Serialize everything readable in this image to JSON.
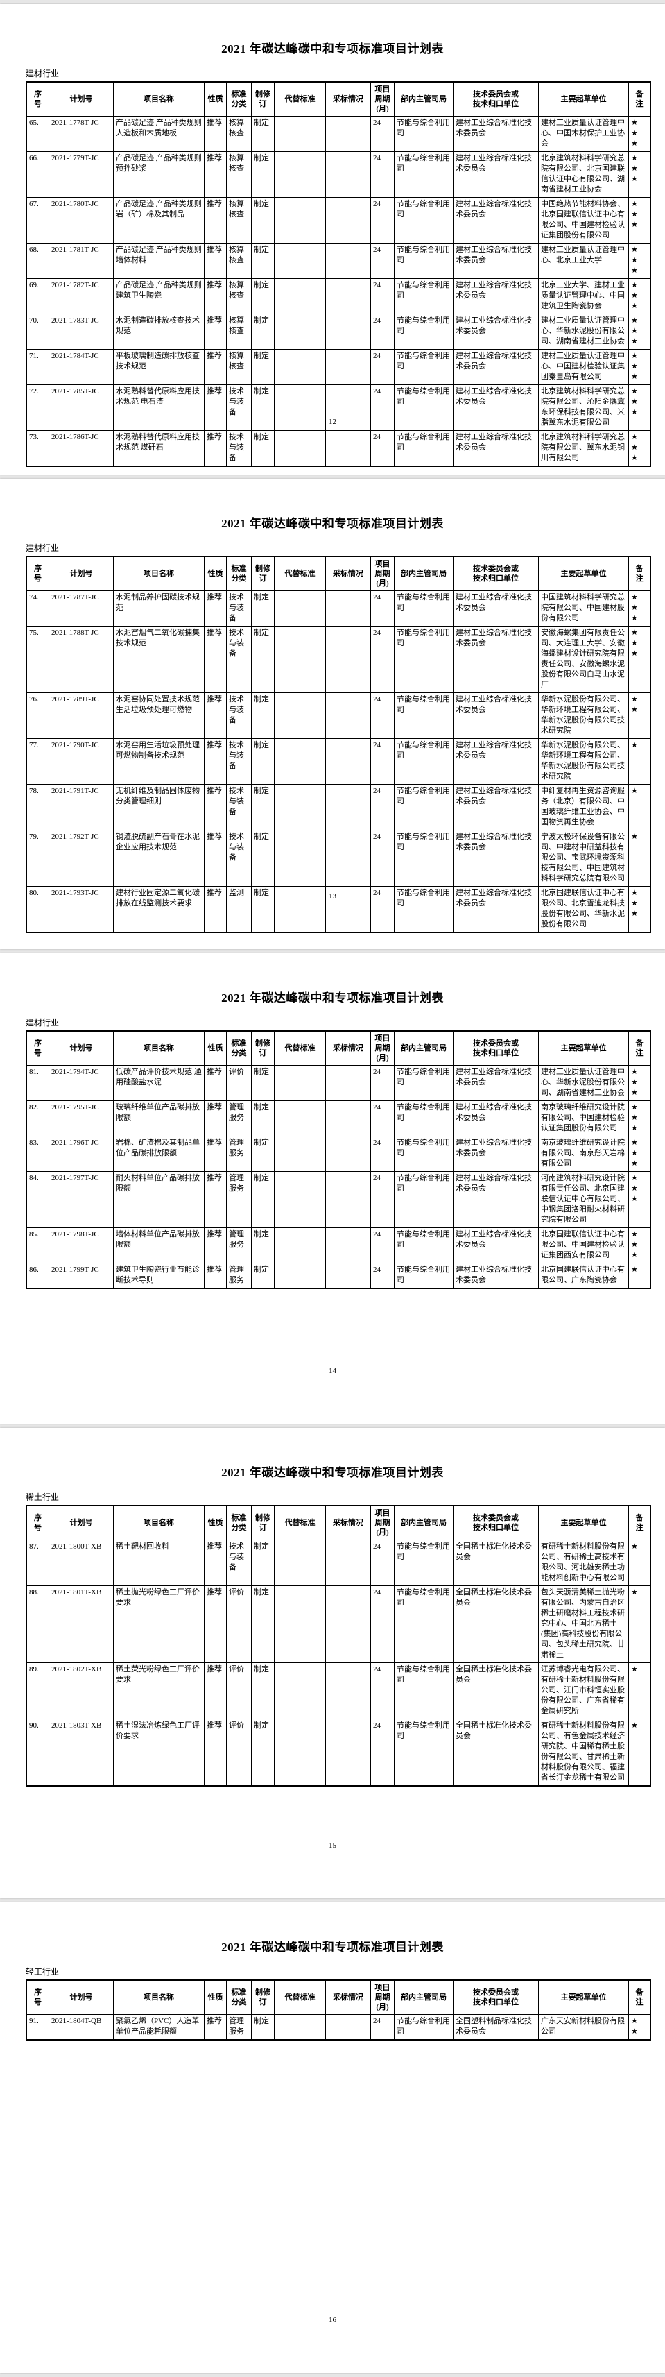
{
  "doc": {
    "title": "2021 年碳达峰碳中和专项标准项目计划表"
  },
  "table": {
    "columns": [
      "序\n号",
      "计划号",
      "项目名称",
      "性质",
      "标准\n分类",
      "制修\n订",
      "代替标准",
      "采标情况",
      "项目\n周期\n(月)",
      "部内主管司局",
      "技术委员会或\n技术归口单位",
      "主要起草单位",
      "备\n注"
    ],
    "column_keys": [
      "index",
      "plan-no",
      "project-name",
      "nature",
      "std-class",
      "make-revise",
      "replaced-std",
      "adoption",
      "cycle-months",
      "dept",
      "committee",
      "drafting-unit",
      "remark"
    ]
  },
  "pages": [
    {
      "section": "建材行业",
      "page_number": "12",
      "rows": [
        [
          "65.",
          "2021-1778T-JC",
          "产品碳足迹 产品种类规则 人造板和木质地板",
          "推荐",
          "核算核查",
          "制定",
          "",
          "",
          "24",
          "节能与综合利用司",
          "建材工业综合标准化技术委员会",
          "建材工业质量认证管理中心、中国木材保护工业协会",
          "★\n★\n★"
        ],
        [
          "66.",
          "2021-1779T-JC",
          "产品碳足迹 产品种类规则 预拌砂浆",
          "推荐",
          "核算核查",
          "制定",
          "",
          "",
          "24",
          "节能与综合利用司",
          "建材工业综合标准化技术委员会",
          "北京建筑材料科学研究总院有限公司、北京国建联信认证中心有限公司、湖南省建材工业协会",
          "★\n★\n★"
        ],
        [
          "67.",
          "2021-1780T-JC",
          "产品碳足迹 产品种类规则 岩（矿）棉及其制品",
          "推荐",
          "核算核查",
          "制定",
          "",
          "",
          "24",
          "节能与综合利用司",
          "建材工业综合标准化技术委员会",
          "中国绝热节能材料协会、北京国建联信认证中心有限公司、中国建材检验认证集团股份有限公司",
          "★\n★\n★"
        ],
        [
          "68.",
          "2021-1781T-JC",
          "产品碳足迹 产品种类规则 墙体材料",
          "推荐",
          "核算核查",
          "制定",
          "",
          "",
          "24",
          "节能与综合利用司",
          "建材工业综合标准化技术委员会",
          "建材工业质量认证管理中心、北京工业大学",
          "★\n★\n★"
        ],
        [
          "69.",
          "2021-1782T-JC",
          "产品碳足迹 产品种类规则 建筑卫生陶瓷",
          "推荐",
          "核算核查",
          "制定",
          "",
          "",
          "24",
          "节能与综合利用司",
          "建材工业综合标准化技术委员会",
          "北京工业大学、建材工业质量认证管理中心、中国建筑卫生陶瓷协会",
          "★\n★\n★"
        ],
        [
          "70.",
          "2021-1783T-JC",
          "水泥制造碳排放核查技术规范",
          "推荐",
          "核算核查",
          "制定",
          "",
          "",
          "24",
          "节能与综合利用司",
          "建材工业综合标准化技术委员会",
          "建材工业质量认证管理中心、华新水泥股份有限公司、湖南省建材工业协会",
          "★\n★\n★"
        ],
        [
          "71.",
          "2021-1784T-JC",
          "平板玻璃制造碳排放核查技术规范",
          "推荐",
          "核算核查",
          "制定",
          "",
          "",
          "24",
          "节能与综合利用司",
          "建材工业综合标准化技术委员会",
          "建材工业质量认证管理中心、中国建材检验认证集团秦皇岛有限公司",
          "★\n★\n★"
        ],
        [
          "72.",
          "2021-1785T-JC",
          "水泥熟料替代原料应用技术规范 电石渣",
          "推荐",
          "技术与装备",
          "制定",
          "",
          "",
          "24",
          "节能与综合利用司",
          "建材工业综合标准化技术委员会",
          "北京建筑材料科学研究总院有限公司、沁阳金隅冀东环保科技有限公司、米脂冀东水泥有限公司",
          "★\n★\n★"
        ],
        [
          "73.",
          "2021-1786T-JC",
          "水泥熟料替代原料应用技术规范 煤矸石",
          "推荐",
          "技术与装备",
          "制定",
          "",
          "",
          "24",
          "节能与综合利用司",
          "建材工业综合标准化技术委员会",
          "北京建筑材料科学研究总院有限公司、冀东水泥铜川有限公司",
          "★\n★\n★"
        ]
      ]
    },
    {
      "section": "建材行业",
      "page_number": "13",
      "rows": [
        [
          "74.",
          "2021-1787T-JC",
          "水泥制品养护固碳技术规范",
          "推荐",
          "技术与装备",
          "制定",
          "",
          "",
          "24",
          "节能与综合利用司",
          "建材工业综合标准化技术委员会",
          "中国建筑材料科学研究总院有限公司、中国建材股份有限公司",
          "★\n★\n★"
        ],
        [
          "75.",
          "2021-1788T-JC",
          "水泥窑烟气二氧化碳捕集技术规范",
          "推荐",
          "技术与装备",
          "制定",
          "",
          "",
          "24",
          "节能与综合利用司",
          "建材工业综合标准化技术委员会",
          "安徽海螺集团有限责任公司、大连理工大学、安徽海螺建材设计研究院有限责任公司、安徽海螺水泥股份有限公司白马山水泥厂",
          "★\n★\n★"
        ],
        [
          "76.",
          "2021-1789T-JC",
          "水泥窑协同处置技术规范 生活垃圾预处理可燃物",
          "推荐",
          "技术与装备",
          "制定",
          "",
          "",
          "24",
          "节能与综合利用司",
          "建材工业综合标准化技术委员会",
          "华新水泥股份有限公司、华新环境工程有限公司、华新水泥股份有限公司技术研究院",
          "★\n★"
        ],
        [
          "77.",
          "2021-1790T-JC",
          "水泥窑用生活垃圾预处理可燃物制备技术规范",
          "推荐",
          "技术与装备",
          "制定",
          "",
          "",
          "24",
          "节能与综合利用司",
          "建材工业综合标准化技术委员会",
          "华新水泥股份有限公司、华新环境工程有限公司、华新水泥股份有限公司技术研究院",
          "★"
        ],
        [
          "78.",
          "2021-1791T-JC",
          "无机纤维及制品固体废物分类管理细则",
          "推荐",
          "技术与装备",
          "制定",
          "",
          "",
          "24",
          "节能与综合利用司",
          "建材工业综合标准化技术委员会",
          "中纤复材再生资源咨询服务（北京）有限公司、中国玻璃纤维工业协会、中国物资再生协会",
          "★"
        ],
        [
          "79.",
          "2021-1792T-JC",
          "钢渣脱硫副产石膏在水泥企业应用技术规范",
          "推荐",
          "技术与装备",
          "制定",
          "",
          "",
          "24",
          "节能与综合利用司",
          "建材工业综合标准化技术委员会",
          "宁波太极环保设备有限公司、中建材中研益科技有限公司、宝武环境资源科技有限公司、中国建筑材料科学研究总院有限公司",
          "★"
        ],
        [
          "80.",
          "2021-1793T-JC",
          "建材行业固定源二氧化碳排放在线监测技术要求",
          "推荐",
          "监测",
          "制定",
          "",
          "",
          "24",
          "节能与综合利用司",
          "建材工业综合标准化技术委员会",
          "北京国建联信认证中心有限公司、北京雪迪龙科技股份有限公司、华新水泥股份有限公司",
          "★\n★\n★"
        ]
      ]
    },
    {
      "section": "建材行业",
      "page_number": "14",
      "rows": [
        [
          "81.",
          "2021-1794T-JC",
          "低碳产品评价技术规范 通用硅酸盐水泥",
          "推荐",
          "评价",
          "制定",
          "",
          "",
          "24",
          "节能与综合利用司",
          "建材工业综合标准化技术委员会",
          "建材工业质量认证管理中心、华新水泥股份有限公司、湖南省建材工业协会",
          "★\n★\n★"
        ],
        [
          "82.",
          "2021-1795T-JC",
          "玻璃纤维单位产品碳排放限额",
          "推荐",
          "管理服务",
          "制定",
          "",
          "",
          "24",
          "节能与综合利用司",
          "建材工业综合标准化技术委员会",
          "南京玻璃纤维研究设计院有限公司、中国建材检验认证集团股份有限公司",
          "★\n★\n★"
        ],
        [
          "83.",
          "2021-1796T-JC",
          "岩棉、矿渣棉及其制品单位产品碳排放限额",
          "推荐",
          "管理服务",
          "制定",
          "",
          "",
          "24",
          "节能与综合利用司",
          "建材工业综合标准化技术委员会",
          "南京玻璃纤维研究设计院有限公司、南京彤天岩棉有限公司",
          "★\n★\n★"
        ],
        [
          "84.",
          "2021-1797T-JC",
          "耐火材料单位产品碳排放限额",
          "推荐",
          "管理服务",
          "制定",
          "",
          "",
          "24",
          "节能与综合利用司",
          "建材工业综合标准化技术委员会",
          "河南建筑材料研究设计院有限责任公司、北京国建联信认证中心有限公司、中钢集团洛阳耐火材料研究院有限公司",
          "★\n★\n★"
        ],
        [
          "85.",
          "2021-1798T-JC",
          "墙体材料单位产品碳排放限额",
          "推荐",
          "管理服务",
          "制定",
          "",
          "",
          "24",
          "节能与综合利用司",
          "建材工业综合标准化技术委员会",
          "北京国建联信认证中心有限公司、中国建材检验认证集团西安有限公司",
          "★\n★\n★"
        ],
        [
          "86.",
          "2021-1799T-JC",
          "建筑卫生陶瓷行业节能诊断技术导则",
          "推荐",
          "管理服务",
          "制定",
          "",
          "",
          "24",
          "节能与综合利用司",
          "建材工业综合标准化技术委员会",
          "北京国建联信认证中心有限公司、广东陶瓷协会",
          "★"
        ]
      ]
    },
    {
      "section": "稀土行业",
      "page_number": "15",
      "rows": [
        [
          "87.",
          "2021-1800T-XB",
          "稀土靶材回收料",
          "推荐",
          "技术与装备",
          "制定",
          "",
          "",
          "24",
          "节能与综合利用司",
          "全国稀土标准化技术委员会",
          "有研稀土新材料股份有限公司、有研稀土高技术有限公司、河北雄安稀土功能材料创新中心有限公司",
          "★"
        ],
        [
          "88.",
          "2021-1801T-XB",
          "稀土抛光粉绿色工厂评价要求",
          "推荐",
          "评价",
          "制定",
          "",
          "",
          "24",
          "节能与综合利用司",
          "全国稀土标准化技术委员会",
          "包头天骄清美稀土抛光粉有限公司、内蒙古自治区稀土研磨材料工程技术研究中心、中国北方稀土(集团)高科技股份有限公司、包头稀土研究院、甘肃稀土",
          "★"
        ],
        [
          "89.",
          "2021-1802T-XB",
          "稀土荧光粉绿色工厂评价要求",
          "推荐",
          "评价",
          "制定",
          "",
          "",
          "24",
          "节能与综合利用司",
          "全国稀土标准化技术委员会",
          "江苏博睿光电有限公司、有研稀土新材料股份有限公司、江门市科恒实业股份有限公司、广东省稀有金属研究所",
          "★"
        ],
        [
          "90.",
          "2021-1803T-XB",
          "稀土湿法冶炼绿色工厂评价要求",
          "推荐",
          "评价",
          "制定",
          "",
          "",
          "24",
          "节能与综合利用司",
          "全国稀土标准化技术委员会",
          "有研稀土新材料股份有限公司、有色金属技术经济研究院、中国稀有稀土股份有限公司、甘肃稀土新材料股份有限公司、福建省长汀金龙稀土有限公司",
          "★"
        ]
      ]
    },
    {
      "section": "轻工行业",
      "page_number": "16",
      "rows": [
        [
          "91.",
          "2021-1804T-QB",
          "聚氯乙烯（PVC）人造革单位产品能耗限额",
          "推荐",
          "管理服务",
          "制定",
          "",
          "",
          "24",
          "节能与综合利用司",
          "全国塑料制品标准化技术委员会",
          "广东天安新材料股份有限公司",
          "★\n★"
        ]
      ]
    }
  ]
}
